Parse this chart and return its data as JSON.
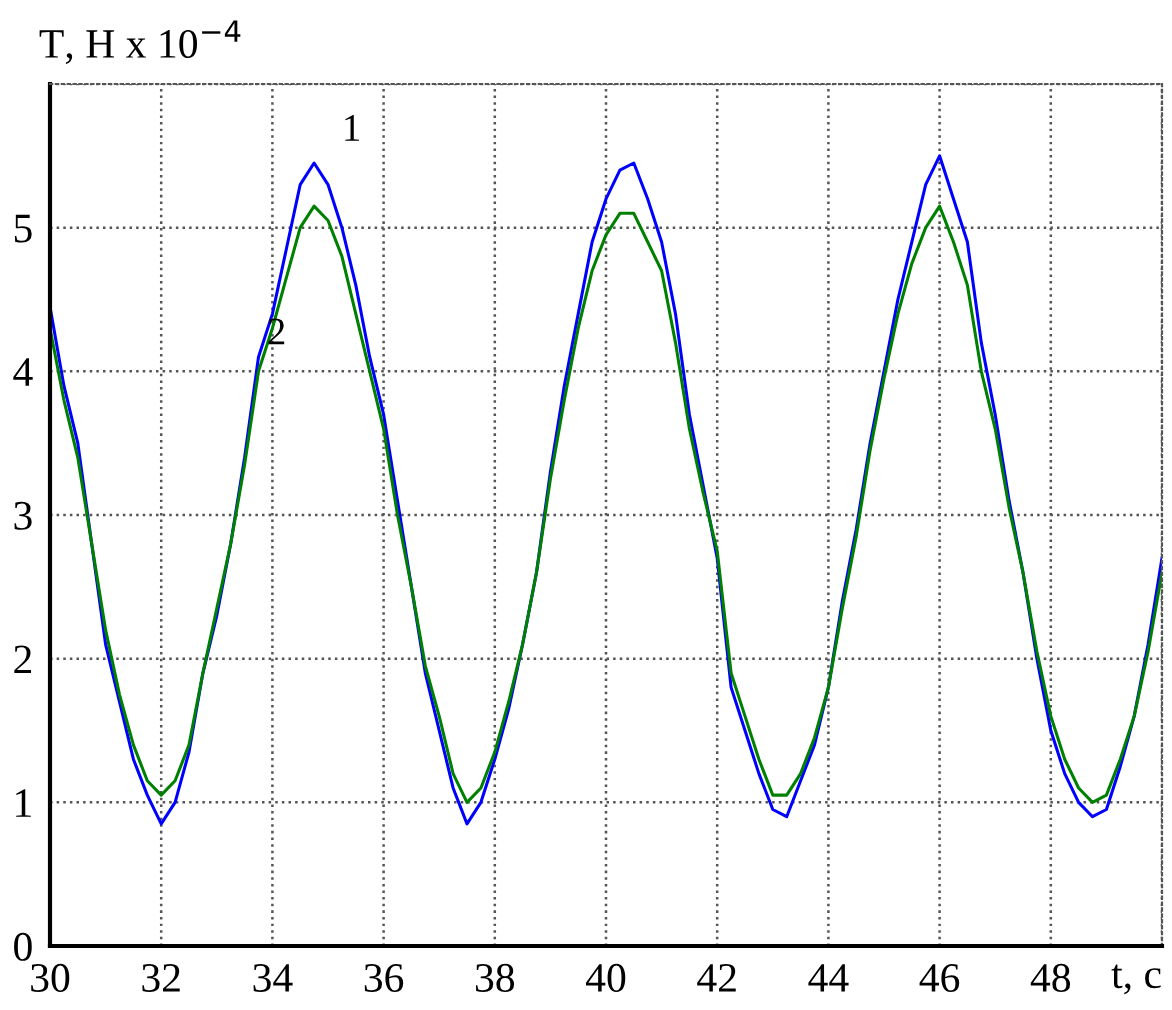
{
  "chart_data": {
    "type": "line",
    "xlabel": "t, c",
    "ylabel": "T, H x 10$^{−4}$",
    "x": [
      30.0,
      30.25,
      30.5,
      30.75,
      31.0,
      31.25,
      31.5,
      31.75,
      32.0,
      32.25,
      32.5,
      32.75,
      33.0,
      33.25,
      33.5,
      33.75,
      34.0,
      34.25,
      34.5,
      34.75,
      35.0,
      35.25,
      35.5,
      35.75,
      36.0,
      36.25,
      36.5,
      36.75,
      37.0,
      37.25,
      37.5,
      37.75,
      38.0,
      38.25,
      38.5,
      38.75,
      39.0,
      39.25,
      39.5,
      39.75,
      40.0,
      40.25,
      40.5,
      40.75,
      41.0,
      41.25,
      41.5,
      41.75,
      42.0,
      42.25,
      42.5,
      42.75,
      43.0,
      43.25,
      43.5,
      43.75,
      44.0,
      44.25,
      44.5,
      44.75,
      45.0,
      45.25,
      45.5,
      45.75,
      46.0,
      46.25,
      46.5,
      46.75,
      47.0,
      47.25,
      47.5,
      47.75,
      48.0,
      48.25,
      48.5,
      48.75,
      49.0,
      49.25,
      49.5,
      49.75,
      50.0
    ],
    "series": [
      {
        "name": "1",
        "color": "#0000ff",
        "values": [
          4.45,
          3.9,
          3.5,
          2.8,
          2.1,
          1.7,
          1.3,
          1.05,
          0.85,
          1.0,
          1.35,
          1.9,
          2.3,
          2.8,
          3.4,
          4.1,
          4.4,
          4.85,
          5.3,
          5.45,
          5.3,
          5.0,
          4.6,
          4.1,
          3.7,
          3.1,
          2.5,
          1.9,
          1.5,
          1.1,
          0.85,
          1.0,
          1.3,
          1.65,
          2.1,
          2.6,
          3.3,
          3.9,
          4.4,
          4.9,
          5.2,
          5.4,
          5.45,
          5.2,
          4.9,
          4.4,
          3.7,
          3.2,
          2.7,
          1.8,
          1.5,
          1.2,
          0.95,
          0.9,
          1.15,
          1.4,
          1.8,
          2.4,
          2.9,
          3.5,
          4.0,
          4.5,
          4.9,
          5.3,
          5.5,
          5.2,
          4.9,
          4.2,
          3.7,
          3.1,
          2.6,
          2.0,
          1.5,
          1.2,
          1.0,
          0.9,
          0.95,
          1.25,
          1.6,
          2.1,
          2.7
        ]
      },
      {
        "name": "2",
        "color": "#008000",
        "values": [
          4.3,
          3.8,
          3.4,
          2.8,
          2.2,
          1.75,
          1.4,
          1.15,
          1.05,
          1.15,
          1.4,
          1.9,
          2.35,
          2.8,
          3.35,
          4.0,
          4.3,
          4.65,
          5.0,
          5.15,
          5.05,
          4.8,
          4.4,
          4.0,
          3.6,
          3.0,
          2.5,
          1.95,
          1.6,
          1.2,
          1.0,
          1.1,
          1.35,
          1.7,
          2.1,
          2.6,
          3.25,
          3.8,
          4.3,
          4.7,
          4.95,
          5.1,
          5.1,
          4.9,
          4.7,
          4.2,
          3.6,
          3.15,
          2.75,
          1.9,
          1.6,
          1.3,
          1.05,
          1.05,
          1.2,
          1.45,
          1.8,
          2.35,
          2.85,
          3.45,
          3.95,
          4.4,
          4.75,
          5.0,
          5.15,
          4.9,
          4.6,
          4.0,
          3.6,
          3.05,
          2.6,
          2.05,
          1.6,
          1.3,
          1.1,
          1.0,
          1.05,
          1.3,
          1.6,
          2.05,
          2.6
        ]
      }
    ],
    "xlim": [
      30,
      50
    ],
    "ylim": [
      0,
      6
    ],
    "xticks": [
      30,
      32,
      34,
      36,
      38,
      40,
      42,
      44,
      46,
      48,
      {
        "value": 50,
        "label": null
      }
    ],
    "yticks": [
      0,
      1,
      2,
      3,
      4,
      5,
      {
        "value": 6,
        "label": null
      }
    ],
    "grid": true,
    "legend": false,
    "line_style": "solid",
    "marker": "none"
  }
}
